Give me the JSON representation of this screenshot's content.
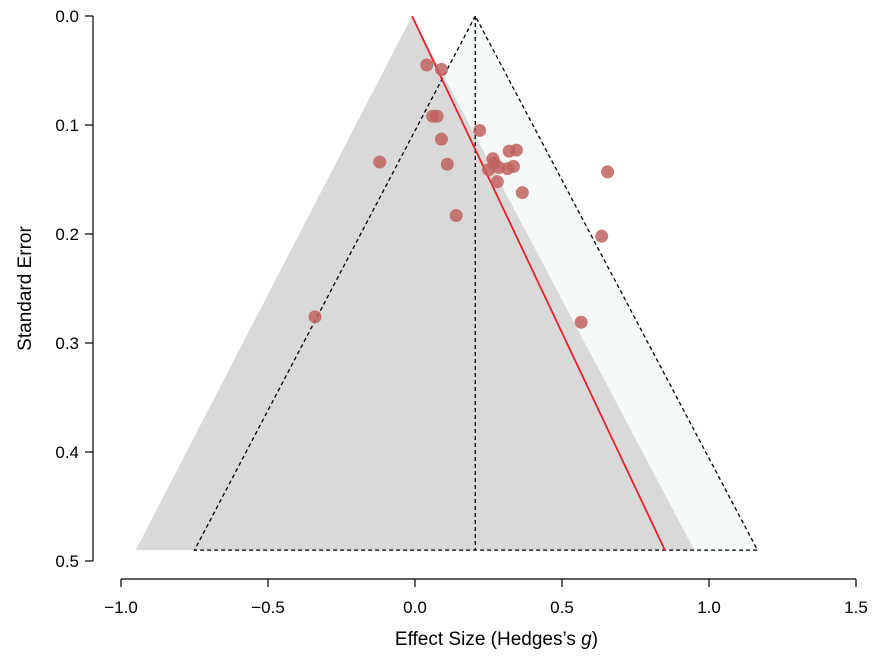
{
  "chart_data": {
    "type": "scatter",
    "subtype": "funnel-plot",
    "xlabel_prefix": "Effect Size (Hedges’s ",
    "xlabel_italic": "g",
    "xlabel_suffix": ")",
    "ylabel": "Standard Error",
    "xlim": [
      -1.0,
      1.5
    ],
    "ylim": [
      0.0,
      0.5
    ],
    "y_reversed": true,
    "x_ticks": [
      -1.0,
      -0.5,
      0.0,
      0.5,
      1.0,
      1.5
    ],
    "x_tick_labels": [
      "−1.0",
      "−0.5",
      "0.0",
      "0.5",
      "1.0",
      "1.5"
    ],
    "y_ticks": [
      0.0,
      0.1,
      0.2,
      0.3,
      0.4,
      0.5
    ],
    "y_tick_labels": [
      "0.0",
      "0.1",
      "0.2",
      "0.3",
      "0.4",
      "0.5"
    ],
    "grid": false,
    "colors": {
      "shaded_funnel": "#d9d9d9",
      "light_funnel": "#f6f9f9",
      "regression_line": "#e8222a",
      "points": "#c0625e",
      "dashed_lines": "#000000"
    },
    "shaded_funnel": {
      "apex": [
        -0.01,
        0.0
      ],
      "base_left": [
        -0.95,
        0.49
      ],
      "base_right": [
        0.95,
        0.49
      ]
    },
    "dashed_funnel": {
      "apex": [
        0.205,
        0.0
      ],
      "base_left": [
        -0.75,
        0.49
      ],
      "base_right": [
        1.165,
        0.49
      ]
    },
    "regression_line": {
      "start": [
        -0.01,
        0.0
      ],
      "end": [
        0.85,
        0.49
      ]
    },
    "points": [
      {
        "x": 0.04,
        "y": 0.045
      },
      {
        "x": 0.09,
        "y": 0.049
      },
      {
        "x": 0.06,
        "y": 0.092
      },
      {
        "x": 0.075,
        "y": 0.092
      },
      {
        "x": 0.09,
        "y": 0.113
      },
      {
        "x": 0.22,
        "y": 0.105
      },
      {
        "x": -0.12,
        "y": 0.134
      },
      {
        "x": 0.11,
        "y": 0.136
      },
      {
        "x": 0.265,
        "y": 0.131
      },
      {
        "x": 0.27,
        "y": 0.135
      },
      {
        "x": 0.25,
        "y": 0.141
      },
      {
        "x": 0.285,
        "y": 0.139
      },
      {
        "x": 0.32,
        "y": 0.124
      },
      {
        "x": 0.345,
        "y": 0.123
      },
      {
        "x": 0.315,
        "y": 0.14
      },
      {
        "x": 0.335,
        "y": 0.138
      },
      {
        "x": 0.28,
        "y": 0.152
      },
      {
        "x": 0.365,
        "y": 0.162
      },
      {
        "x": 0.655,
        "y": 0.143
      },
      {
        "x": 0.14,
        "y": 0.183
      },
      {
        "x": 0.635,
        "y": 0.202
      },
      {
        "x": -0.34,
        "y": 0.276
      },
      {
        "x": 0.565,
        "y": 0.281
      }
    ]
  }
}
